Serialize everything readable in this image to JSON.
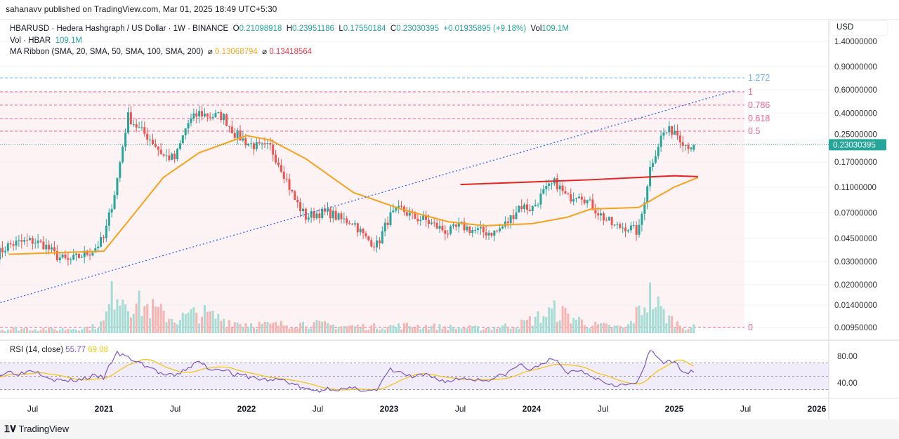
{
  "publish_line": "sahanavv published on TradingView.com, Mar 01, 2025 18:49 UTC+5:30",
  "legend": {
    "symbol": "HBARUSD · Hedera Hashgraph / US Dollar · 1W · BINANCE",
    "o_label": "O",
    "o": "0.21098918",
    "h_label": "H",
    "h": "0.23951186",
    "l_label": "L",
    "l": "0.17550184",
    "c_label": "C",
    "c": "0.23030395",
    "change": "+0.01935895 (+9.18%)",
    "vol_label": "Vol",
    "vol": "109.1M",
    "vol_line_label": "Vol · HBAR",
    "vol_line_value": "109.1M",
    "ma_label": "MA Ribbon (SMA, 20, SMA, 50, SMA, 100, SMA, 200)",
    "ma_symbol": "⌀",
    "ma1": "0.13068794",
    "ma2": "0.13418564"
  },
  "rsi_legend": {
    "label": "RSI (14, close)",
    "rsi": "55.77",
    "rsi_ma": "69.08"
  },
  "currency": "USD",
  "footer_logo": "TradingView",
  "colors": {
    "up": "#26a69a",
    "down": "#ef5350",
    "sma_orange": "#f7a21b",
    "sma_red": "#e52222",
    "fib": "#f06292",
    "fib_ext": "#64b5f6",
    "trendline": "#2962ff",
    "rsi": "#7e57c2",
    "rsi_ma": "#f5c518"
  },
  "chart_data": [
    {
      "type": "candlestick",
      "scale": "log",
      "timeframe": "1W",
      "ylim": [
        0.0095,
        1.4
      ],
      "y_ticks": [
        "1.40000000",
        "0.90000000",
        "0.60000000",
        "0.40000000",
        "0.25000000",
        "0.17000000",
        "0.11000000",
        "0.07000000",
        "0.04500000",
        "0.03000000",
        "0.02000000",
        "0.01400000",
        "0.00950000"
      ],
      "y_tick_values": [
        1.4,
        0.9,
        0.6,
        0.4,
        0.25,
        0.17,
        0.11,
        0.07,
        0.045,
        0.03,
        0.02,
        0.014,
        0.0095
      ],
      "last_price_label": "0.23030395",
      "last_price": 0.23030395,
      "x_ticks": [
        {
          "label": "Jul",
          "date": "2020-07",
          "bold": false
        },
        {
          "label": "2021",
          "date": "2021-01",
          "bold": true
        },
        {
          "label": "Jul",
          "date": "2021-07",
          "bold": false
        },
        {
          "label": "2022",
          "date": "2022-01",
          "bold": true
        },
        {
          "label": "Jul",
          "date": "2022-07",
          "bold": false
        },
        {
          "label": "2023",
          "date": "2023-01",
          "bold": true
        },
        {
          "label": "Jul",
          "date": "2023-07",
          "bold": false
        },
        {
          "label": "2024",
          "date": "2024-01",
          "bold": true
        },
        {
          "label": "Jul",
          "date": "2024-07",
          "bold": false
        },
        {
          "label": "2025",
          "date": "2025-01",
          "bold": true
        },
        {
          "label": "Jul",
          "date": "2025-07",
          "bold": false
        },
        {
          "label": "2026",
          "date": "2026-01",
          "bold": true
        }
      ],
      "monthly_close": [
        [
          "2020-04",
          0.034
        ],
        [
          "2020-05",
          0.04
        ],
        [
          "2020-06",
          0.042
        ],
        [
          "2020-07",
          0.043
        ],
        [
          "2020-08",
          0.04
        ],
        [
          "2020-09",
          0.033
        ],
        [
          "2020-10",
          0.03
        ],
        [
          "2020-11",
          0.033
        ],
        [
          "2020-12",
          0.036
        ],
        [
          "2021-01",
          0.045
        ],
        [
          "2021-02",
          0.11
        ],
        [
          "2021-03",
          0.38
        ],
        [
          "2021-04",
          0.3
        ],
        [
          "2021-05",
          0.25
        ],
        [
          "2021-06",
          0.19
        ],
        [
          "2021-07",
          0.18
        ],
        [
          "2021-08",
          0.33
        ],
        [
          "2021-09",
          0.4
        ],
        [
          "2021-10",
          0.38
        ],
        [
          "2021-11",
          0.38
        ],
        [
          "2021-12",
          0.28
        ],
        [
          "2022-01",
          0.24
        ],
        [
          "2022-02",
          0.22
        ],
        [
          "2022-03",
          0.22
        ],
        [
          "2022-04",
          0.15
        ],
        [
          "2022-05",
          0.09
        ],
        [
          "2022-06",
          0.065
        ],
        [
          "2022-07",
          0.07
        ],
        [
          "2022-08",
          0.07
        ],
        [
          "2022-09",
          0.062
        ],
        [
          "2022-10",
          0.06
        ],
        [
          "2022-11",
          0.045
        ],
        [
          "2022-12",
          0.04
        ],
        [
          "2023-01",
          0.065
        ],
        [
          "2023-02",
          0.075
        ],
        [
          "2023-03",
          0.065
        ],
        [
          "2023-04",
          0.062
        ],
        [
          "2023-05",
          0.055
        ],
        [
          "2023-06",
          0.05
        ],
        [
          "2023-07",
          0.056
        ],
        [
          "2023-08",
          0.052
        ],
        [
          "2023-09",
          0.05
        ],
        [
          "2023-10",
          0.05
        ],
        [
          "2023-11",
          0.06
        ],
        [
          "2023-12",
          0.08
        ],
        [
          "2024-01",
          0.075
        ],
        [
          "2024-02",
          0.1
        ],
        [
          "2024-03",
          0.12
        ],
        [
          "2024-04",
          0.09
        ],
        [
          "2024-05",
          0.1
        ],
        [
          "2024-06",
          0.08
        ],
        [
          "2024-07",
          0.065
        ],
        [
          "2024-08",
          0.055
        ],
        [
          "2024-09",
          0.055
        ],
        [
          "2024-10",
          0.05
        ],
        [
          "2024-11",
          0.16
        ],
        [
          "2024-12",
          0.28
        ],
        [
          "2025-01",
          0.3
        ],
        [
          "2025-02",
          0.23
        ]
      ],
      "sma50": [
        [
          "2020-05",
          0.034
        ],
        [
          "2021-01",
          0.036
        ],
        [
          "2021-03",
          0.06
        ],
        [
          "2021-06",
          0.13
        ],
        [
          "2021-09",
          0.2
        ],
        [
          "2022-01",
          0.27
        ],
        [
          "2022-03",
          0.25
        ],
        [
          "2022-06",
          0.18
        ],
        [
          "2022-10",
          0.1
        ],
        [
          "2023-02",
          0.075
        ],
        [
          "2023-06",
          0.06
        ],
        [
          "2023-09",
          0.056
        ],
        [
          "2024-01",
          0.058
        ],
        [
          "2024-04",
          0.065
        ],
        [
          "2024-06",
          0.075
        ],
        [
          "2024-10",
          0.077
        ],
        [
          "2025-01",
          0.11
        ],
        [
          "2025-03",
          0.13
        ]
      ],
      "sma200": [
        [
          "2023-07",
          0.115
        ],
        [
          "2024-06",
          0.125
        ],
        [
          "2025-01",
          0.134
        ],
        [
          "2025-03",
          0.132
        ]
      ],
      "fib_levels": [
        {
          "label": "1.272",
          "price": 0.74,
          "extension": true
        },
        {
          "label": "1",
          "price": 0.58,
          "extension": false
        },
        {
          "label": "0.786",
          "price": 0.46,
          "extension": false
        },
        {
          "label": "0.618",
          "price": 0.364,
          "extension": false
        },
        {
          "label": "0.5",
          "price": 0.292,
          "extension": false
        },
        {
          "label": "0",
          "price": 0.0095,
          "extension": false
        }
      ],
      "trendline": [
        [
          "2020-04",
          0.0144
        ],
        [
          "2025-06",
          0.59
        ]
      ],
      "volume_monthly_M": [
        [
          "2020-04",
          60
        ],
        [
          "2020-06",
          90
        ],
        [
          "2020-09",
          70
        ],
        [
          "2020-12",
          110
        ],
        [
          "2021-01",
          200
        ],
        [
          "2021-02",
          900
        ],
        [
          "2021-03",
          600
        ],
        [
          "2021-05",
          450
        ],
        [
          "2021-07",
          250
        ],
        [
          "2021-09",
          380
        ],
        [
          "2021-12",
          200
        ],
        [
          "2022-03",
          150
        ],
        [
          "2022-06",
          180
        ],
        [
          "2022-09",
          130
        ],
        [
          "2022-12",
          120
        ],
        [
          "2023-03",
          140
        ],
        [
          "2023-06",
          110
        ],
        [
          "2023-09",
          90
        ],
        [
          "2023-12",
          160
        ],
        [
          "2024-03",
          420
        ],
        [
          "2024-06",
          150
        ],
        [
          "2024-09",
          100
        ],
        [
          "2024-11",
          700
        ],
        [
          "2024-12",
          380
        ],
        [
          "2025-01",
          200
        ],
        [
          "2025-02",
          109.1
        ]
      ]
    },
    {
      "type": "line",
      "name": "RSI (14, close)",
      "ylim": [
        20,
        100
      ],
      "y_ticks": [
        "80.00",
        "40.00"
      ],
      "y_tick_values": [
        80,
        40
      ],
      "bands": [
        70,
        50,
        30
      ],
      "rsi_monthly": [
        [
          "2020-04",
          50
        ],
        [
          "2020-05",
          57
        ],
        [
          "2020-06",
          54
        ],
        [
          "2020-07",
          60
        ],
        [
          "2020-08",
          52
        ],
        [
          "2020-09",
          44
        ],
        [
          "2020-10",
          43
        ],
        [
          "2020-11",
          45
        ],
        [
          "2020-12",
          50
        ],
        [
          "2021-01",
          48
        ],
        [
          "2021-02",
          85
        ],
        [
          "2021-03",
          78
        ],
        [
          "2021-04",
          70
        ],
        [
          "2021-05",
          62
        ],
        [
          "2021-06",
          52
        ],
        [
          "2021-07",
          50
        ],
        [
          "2021-08",
          62
        ],
        [
          "2021-09",
          72
        ],
        [
          "2021-10",
          60
        ],
        [
          "2021-11",
          62
        ],
        [
          "2021-12",
          52
        ],
        [
          "2022-01",
          50
        ],
        [
          "2022-02",
          46
        ],
        [
          "2022-03",
          44
        ],
        [
          "2022-04",
          45
        ],
        [
          "2022-05",
          38
        ],
        [
          "2022-06",
          30
        ],
        [
          "2022-07",
          28
        ],
        [
          "2022-08",
          32
        ],
        [
          "2022-09",
          30
        ],
        [
          "2022-10",
          31
        ],
        [
          "2022-11",
          30
        ],
        [
          "2022-12",
          28
        ],
        [
          "2023-01",
          60
        ],
        [
          "2023-02",
          55
        ],
        [
          "2023-03",
          48
        ],
        [
          "2023-04",
          52
        ],
        [
          "2023-05",
          46
        ],
        [
          "2023-06",
          42
        ],
        [
          "2023-07",
          47
        ],
        [
          "2023-08",
          46
        ],
        [
          "2023-09",
          44
        ],
        [
          "2023-10",
          48
        ],
        [
          "2023-11",
          55
        ],
        [
          "2023-12",
          68
        ],
        [
          "2024-01",
          58
        ],
        [
          "2024-02",
          72
        ],
        [
          "2024-03",
          74
        ],
        [
          "2024-04",
          55
        ],
        [
          "2024-05",
          60
        ],
        [
          "2024-06",
          52
        ],
        [
          "2024-07",
          42
        ],
        [
          "2024-08",
          38
        ],
        [
          "2024-09",
          36
        ],
        [
          "2024-10",
          42
        ],
        [
          "2024-11",
          90
        ],
        [
          "2024-12",
          72
        ],
        [
          "2025-01",
          70
        ],
        [
          "2025-02",
          56
        ]
      ]
    }
  ]
}
